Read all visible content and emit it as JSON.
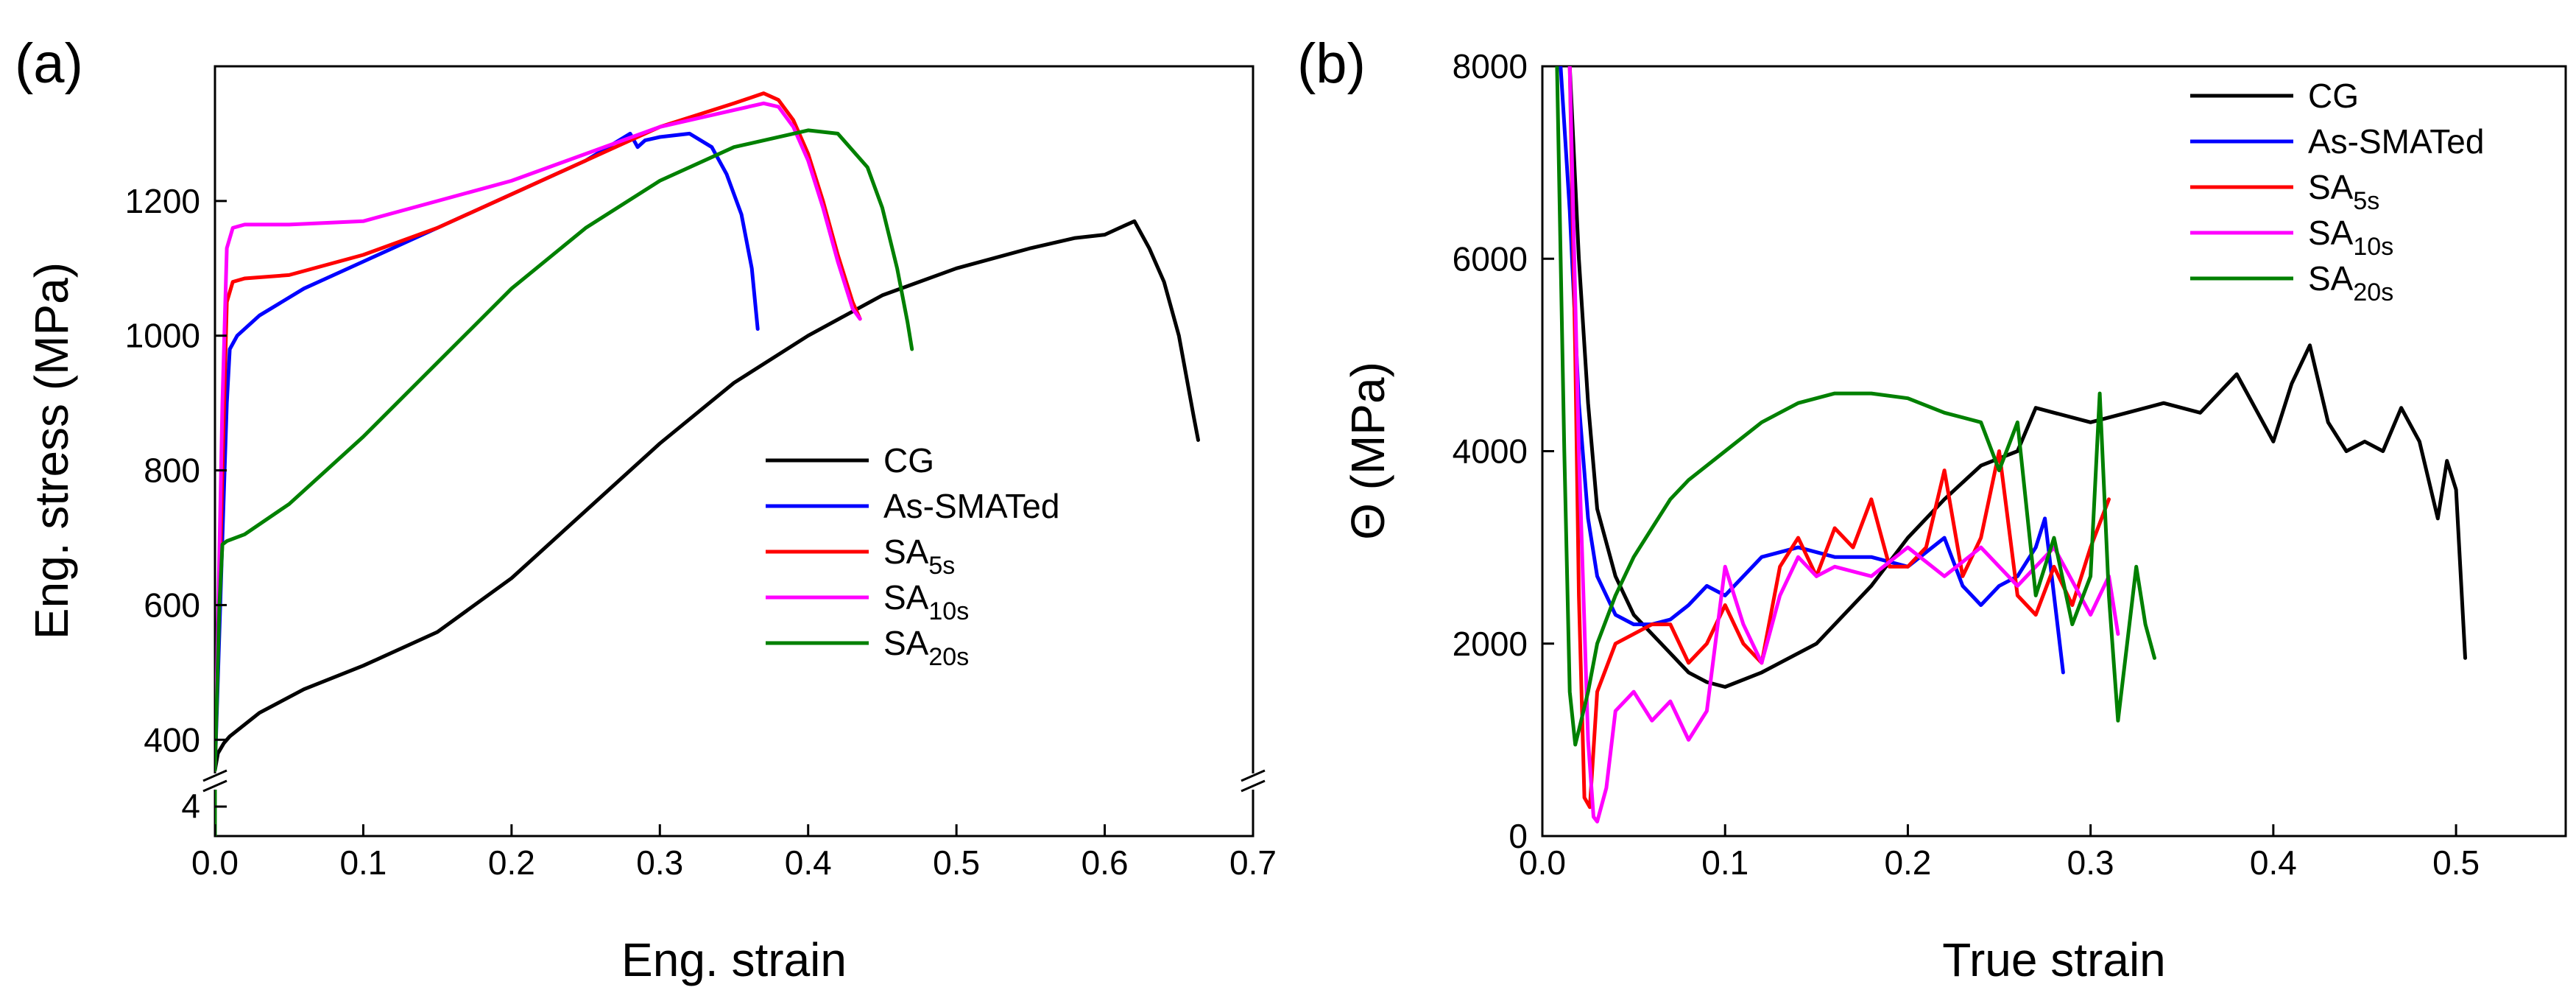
{
  "chart_data": [
    {
      "type": "line",
      "panel_label": "(a)",
      "xlabel": "Eng. strain",
      "ylabel": "Eng. stress (MPa)",
      "xlim": [
        0,
        0.7
      ],
      "ylim": [
        350,
        1400
      ],
      "axis_break": {
        "lower_tick": "4",
        "upper_start": 350
      },
      "xticks": [
        0.0,
        0.1,
        0.2,
        0.3,
        0.4,
        0.5,
        0.6,
        0.7
      ],
      "xtick_labels": [
        "0.0",
        "0.1",
        "0.2",
        "0.3",
        "0.4",
        "0.5",
        "0.6",
        "0.7"
      ],
      "yticks": [
        400,
        600,
        800,
        1000,
        1200
      ],
      "ytick_labels": [
        "400",
        "600",
        "800",
        "1000",
        "1200"
      ],
      "legend_position": "bottom-right",
      "series": [
        {
          "name": "CG",
          "name_base": "CG",
          "name_sub": "",
          "color": "#000000",
          "x": [
            0.0,
            0.002,
            0.006,
            0.01,
            0.03,
            0.06,
            0.1,
            0.15,
            0.2,
            0.25,
            0.3,
            0.35,
            0.4,
            0.45,
            0.5,
            0.55,
            0.58,
            0.6,
            0.61,
            0.62,
            0.63,
            0.64,
            0.65,
            0.66,
            0.663
          ],
          "y": [
            355,
            380,
            395,
            405,
            440,
            475,
            510,
            560,
            640,
            740,
            840,
            930,
            1000,
            1060,
            1100,
            1130,
            1145,
            1150,
            1160,
            1170,
            1130,
            1080,
            1000,
            880,
            845
          ]
        },
        {
          "name": "As-SMATed",
          "name_base": "As-SMATed",
          "name_sub": "",
          "color": "#0000ff",
          "x": [
            0.0,
            0.005,
            0.008,
            0.01,
            0.015,
            0.03,
            0.06,
            0.1,
            0.15,
            0.2,
            0.25,
            0.28,
            0.285,
            0.29,
            0.3,
            0.32,
            0.335,
            0.345,
            0.355,
            0.362,
            0.366
          ],
          "y": [
            355,
            700,
            900,
            980,
            1000,
            1030,
            1070,
            1110,
            1160,
            1210,
            1260,
            1300,
            1280,
            1290,
            1295,
            1300,
            1280,
            1240,
            1180,
            1100,
            1010
          ]
        },
        {
          "name": "SA5s",
          "name_base": "SA",
          "name_sub": "5s",
          "color": "#ff0000",
          "x": [
            0.0,
            0.005,
            0.008,
            0.012,
            0.02,
            0.05,
            0.1,
            0.15,
            0.2,
            0.25,
            0.3,
            0.35,
            0.37,
            0.38,
            0.39,
            0.4,
            0.41,
            0.42,
            0.43,
            0.435
          ],
          "y": [
            355,
            800,
            1050,
            1080,
            1085,
            1090,
            1120,
            1160,
            1210,
            1260,
            1310,
            1345,
            1360,
            1350,
            1320,
            1270,
            1200,
            1120,
            1050,
            1025
          ]
        },
        {
          "name": "SA10s",
          "name_base": "SA",
          "name_sub": "10s",
          "color": "#ff00ff",
          "x": [
            0.0,
            0.005,
            0.008,
            0.012,
            0.02,
            0.05,
            0.1,
            0.15,
            0.2,
            0.25,
            0.3,
            0.35,
            0.37,
            0.38,
            0.39,
            0.4,
            0.41,
            0.42,
            0.43,
            0.435
          ],
          "y": [
            355,
            900,
            1130,
            1160,
            1165,
            1165,
            1170,
            1200,
            1230,
            1270,
            1310,
            1335,
            1345,
            1340,
            1310,
            1260,
            1190,
            1110,
            1040,
            1025
          ]
        },
        {
          "name": "SA20s",
          "name_base": "SA",
          "name_sub": "20s",
          "color": "#008000",
          "x": [
            0.0,
            0.003,
            0.005,
            0.008,
            0.02,
            0.05,
            0.1,
            0.15,
            0.2,
            0.25,
            0.3,
            0.35,
            0.4,
            0.42,
            0.44,
            0.45,
            0.46,
            0.467,
            0.47
          ],
          "y": [
            355,
            600,
            690,
            695,
            705,
            750,
            850,
            960,
            1070,
            1160,
            1230,
            1280,
            1305,
            1300,
            1250,
            1190,
            1100,
            1020,
            980
          ]
        }
      ]
    },
    {
      "type": "line",
      "panel_label": "(b)",
      "xlabel": "True strain",
      "ylabel": "Θ (MPa)",
      "xlim": [
        0,
        0.56
      ],
      "ylim": [
        0,
        8000
      ],
      "xticks": [
        0.0,
        0.1,
        0.2,
        0.3,
        0.4,
        0.5
      ],
      "xtick_labels": [
        "0.0",
        "0.1",
        "0.2",
        "0.3",
        "0.4",
        "0.5"
      ],
      "yticks": [
        0,
        2000,
        4000,
        6000,
        8000
      ],
      "ytick_labels": [
        "0",
        "2000",
        "4000",
        "6000",
        "8000"
      ],
      "legend_position": "top-right",
      "series": [
        {
          "name": "CG",
          "name_base": "CG",
          "name_sub": "",
          "color": "#000000",
          "x": [
            0.015,
            0.02,
            0.025,
            0.03,
            0.04,
            0.05,
            0.06,
            0.07,
            0.08,
            0.09,
            0.1,
            0.12,
            0.15,
            0.18,
            0.2,
            0.22,
            0.24,
            0.26,
            0.27,
            0.28,
            0.3,
            0.32,
            0.34,
            0.36,
            0.38,
            0.4,
            0.41,
            0.42,
            0.43,
            0.44,
            0.45,
            0.46,
            0.47,
            0.48,
            0.49,
            0.495,
            0.5,
            0.505
          ],
          "y": [
            8000,
            6000,
            4500,
            3400,
            2700,
            2300,
            2100,
            1900,
            1700,
            1600,
            1550,
            1700,
            2000,
            2600,
            3100,
            3500,
            3850,
            4000,
            4450,
            4400,
            4300,
            4400,
            4500,
            4400,
            4800,
            4100,
            4700,
            5100,
            4300,
            4000,
            4100,
            4000,
            4450,
            4100,
            3300,
            3900,
            3600,
            1850
          ]
        },
        {
          "name": "As-SMATed",
          "name_base": "As-SMATed",
          "name_sub": "",
          "color": "#0000ff",
          "x": [
            0.01,
            0.015,
            0.02,
            0.025,
            0.03,
            0.04,
            0.05,
            0.06,
            0.07,
            0.08,
            0.09,
            0.1,
            0.12,
            0.14,
            0.16,
            0.18,
            0.2,
            0.22,
            0.23,
            0.24,
            0.25,
            0.26,
            0.27,
            0.275,
            0.28,
            0.285
          ],
          "y": [
            8000,
            6500,
            4500,
            3300,
            2700,
            2300,
            2200,
            2200,
            2250,
            2400,
            2600,
            2500,
            2900,
            3000,
            2900,
            2900,
            2800,
            3100,
            2600,
            2400,
            2600,
            2700,
            3000,
            3300,
            2500,
            1700
          ]
        },
        {
          "name": "SA5s",
          "name_base": "SA",
          "name_sub": "5s",
          "color": "#ff0000",
          "x": [
            0.015,
            0.018,
            0.02,
            0.023,
            0.026,
            0.03,
            0.04,
            0.05,
            0.06,
            0.07,
            0.08,
            0.09,
            0.1,
            0.11,
            0.12,
            0.13,
            0.14,
            0.15,
            0.16,
            0.17,
            0.18,
            0.19,
            0.2,
            0.21,
            0.22,
            0.23,
            0.24,
            0.25,
            0.26,
            0.27,
            0.28,
            0.29,
            0.3,
            0.31
          ],
          "y": [
            8000,
            5000,
            2500,
            400,
            300,
            1500,
            2000,
            2100,
            2200,
            2200,
            1800,
            2000,
            2400,
            2000,
            1800,
            2800,
            3100,
            2700,
            3200,
            3000,
            3500,
            2800,
            2800,
            3000,
            3800,
            2700,
            3100,
            4000,
            2500,
            2300,
            2800,
            2400,
            3000,
            3500
          ]
        },
        {
          "name": "SA10s",
          "name_base": "SA",
          "name_sub": "10s",
          "color": "#ff00ff",
          "x": [
            0.015,
            0.02,
            0.025,
            0.028,
            0.03,
            0.035,
            0.04,
            0.05,
            0.06,
            0.07,
            0.08,
            0.09,
            0.1,
            0.11,
            0.12,
            0.13,
            0.14,
            0.15,
            0.16,
            0.18,
            0.2,
            0.22,
            0.24,
            0.26,
            0.28,
            0.3,
            0.31,
            0.315
          ],
          "y": [
            8000,
            4000,
            1000,
            200,
            150,
            500,
            1300,
            1500,
            1200,
            1400,
            1000,
            1300,
            2800,
            2200,
            1800,
            2500,
            2900,
            2700,
            2800,
            2700,
            3000,
            2700,
            3000,
            2600,
            3000,
            2300,
            2700,
            2100
          ]
        },
        {
          "name": "SA20s",
          "name_base": "SA",
          "name_sub": "20s",
          "color": "#008000",
          "x": [
            0.008,
            0.012,
            0.015,
            0.018,
            0.02,
            0.025,
            0.03,
            0.04,
            0.05,
            0.06,
            0.07,
            0.08,
            0.1,
            0.12,
            0.14,
            0.16,
            0.18,
            0.2,
            0.22,
            0.24,
            0.25,
            0.26,
            0.27,
            0.28,
            0.29,
            0.3,
            0.305,
            0.31,
            0.315,
            0.32,
            0.325,
            0.33,
            0.335
          ],
          "y": [
            8000,
            4000,
            1500,
            950,
            1100,
            1500,
            2000,
            2500,
            2900,
            3200,
            3500,
            3700,
            4000,
            4300,
            4500,
            4600,
            4600,
            4550,
            4400,
            4300,
            3800,
            4300,
            2500,
            3100,
            2200,
            2700,
            4600,
            2500,
            1200,
            2000,
            2800,
            2200,
            1850
          ]
        }
      ]
    }
  ]
}
